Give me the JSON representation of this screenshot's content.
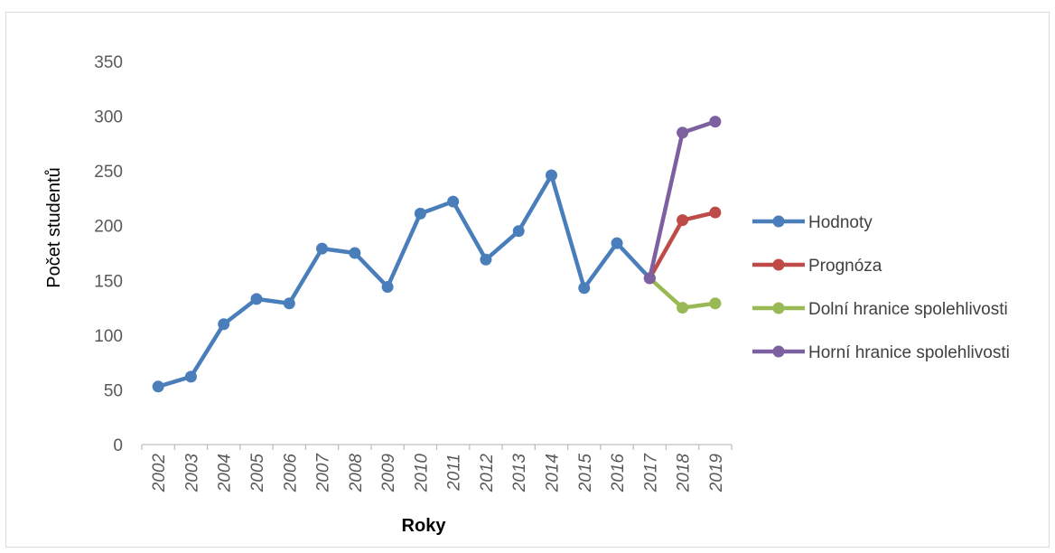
{
  "chart_data": {
    "type": "line",
    "title": "",
    "xlabel": "Roky",
    "ylabel": "Počet studentů",
    "ylim": [
      0,
      350
    ],
    "yticks": [
      0,
      50,
      100,
      150,
      200,
      250,
      300,
      350
    ],
    "grid": false,
    "legend_position": "right",
    "categories": [
      "2002",
      "2003",
      "2004",
      "2005",
      "2006",
      "2007",
      "2008",
      "2009",
      "2010",
      "2011",
      "2012",
      "2013",
      "2014",
      "2015",
      "2016",
      "2017",
      "2018",
      "2019"
    ],
    "series": [
      {
        "name": "Hodnoty",
        "color": "#4A7EBB",
        "values": [
          53,
          62,
          110,
          133,
          129,
          179,
          175,
          144,
          211,
          222,
          169,
          195,
          246,
          143,
          184,
          152,
          null,
          null
        ]
      },
      {
        "name": "Prognóza",
        "color": "#BE4B48",
        "values": [
          null,
          null,
          null,
          null,
          null,
          null,
          null,
          null,
          null,
          null,
          null,
          null,
          null,
          null,
          null,
          152,
          205,
          212
        ]
      },
      {
        "name": "Dolní hranice spolehlivosti",
        "color": "#98B954",
        "values": [
          null,
          null,
          null,
          null,
          null,
          null,
          null,
          null,
          null,
          null,
          null,
          null,
          null,
          null,
          null,
          152,
          125,
          129
        ]
      },
      {
        "name": "Horní hranice spolehlivosti",
        "color": "#7D60A0",
        "values": [
          null,
          null,
          null,
          null,
          null,
          null,
          null,
          null,
          null,
          null,
          null,
          null,
          null,
          null,
          null,
          152,
          285,
          295
        ]
      }
    ]
  }
}
